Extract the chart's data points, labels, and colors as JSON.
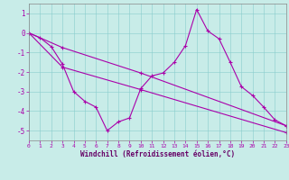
{
  "xlabel": "Windchill (Refroidissement éolien,°C)",
  "xlim": [
    0,
    23
  ],
  "ylim": [
    -5.5,
    1.5
  ],
  "yticks": [
    -5,
    -4,
    -3,
    -2,
    -1,
    0,
    1
  ],
  "xticks": [
    0,
    1,
    2,
    3,
    4,
    5,
    6,
    7,
    8,
    9,
    10,
    11,
    12,
    13,
    14,
    15,
    16,
    17,
    18,
    19,
    20,
    21,
    22,
    23
  ],
  "bg_color": "#c8ece8",
  "line_color": "#aa00aa",
  "line1_x": [
    0,
    1,
    2,
    3,
    4,
    5,
    6,
    7,
    8,
    9,
    10,
    11,
    12,
    13,
    14,
    15,
    16,
    17,
    18,
    19,
    20,
    21,
    22,
    23
  ],
  "line1_y": [
    0.0,
    -0.25,
    -0.7,
    -1.6,
    -3.0,
    -3.5,
    -3.8,
    -5.0,
    -4.55,
    -4.35,
    -2.85,
    -2.2,
    -2.05,
    -1.5,
    -0.65,
    1.2,
    0.1,
    -0.3,
    -1.5,
    -2.75,
    -3.2,
    -3.8,
    -4.45,
    -4.75
  ],
  "line2_x": [
    0,
    3,
    10,
    23
  ],
  "line2_y": [
    0.0,
    -1.75,
    -2.9,
    -5.1
  ],
  "line3_x": [
    0,
    3,
    10,
    23
  ],
  "line3_y": [
    0.0,
    -0.75,
    -2.05,
    -4.75
  ]
}
